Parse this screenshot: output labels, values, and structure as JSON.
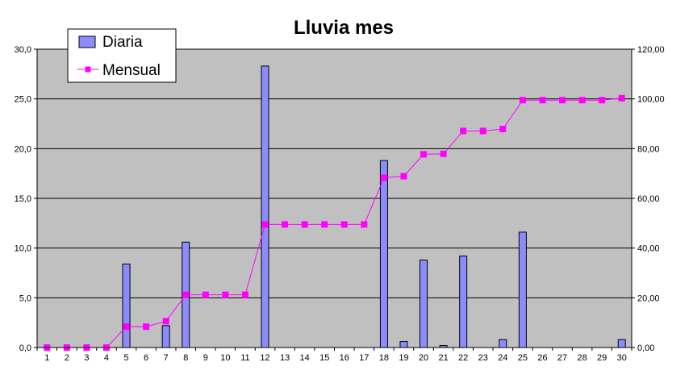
{
  "chart_data": {
    "type": "bar",
    "title": "Lluvia mes",
    "xlabel": "",
    "ylabel": "",
    "categories": [
      "1",
      "2",
      "3",
      "4",
      "5",
      "6",
      "7",
      "8",
      "9",
      "10",
      "11",
      "12",
      "13",
      "14",
      "15",
      "16",
      "17",
      "18",
      "19",
      "20",
      "21",
      "22",
      "23",
      "24",
      "25",
      "26",
      "27",
      "28",
      "29",
      "30"
    ],
    "series": [
      {
        "name": "Diaria",
        "type": "bar",
        "axis": "left",
        "color": "#8c8cff",
        "values": [
          0,
          0,
          0,
          0,
          8.4,
          0,
          2.2,
          10.6,
          0,
          0,
          0,
          28.3,
          0,
          0,
          0,
          0,
          0,
          18.8,
          0.6,
          8.8,
          0.2,
          9.2,
          0,
          0.8,
          11.6,
          0,
          0,
          0,
          0,
          0.8
        ]
      },
      {
        "name": "Mensual",
        "type": "line",
        "axis": "right",
        "color": "#ff00ff",
        "values": [
          0,
          0,
          0,
          0,
          8.4,
          8.4,
          10.6,
          21.2,
          21.2,
          21.2,
          21.2,
          49.5,
          49.5,
          49.5,
          49.5,
          49.5,
          49.5,
          68.3,
          68.9,
          77.7,
          77.9,
          87.1,
          87.1,
          87.9,
          99.5,
          99.5,
          99.5,
          99.5,
          99.5,
          100.3
        ]
      }
    ],
    "ylim_left": [
      0,
      30
    ],
    "yticks_left": [
      "0,0",
      "5,0",
      "10,0",
      "15,0",
      "20,0",
      "25,0",
      "30,0"
    ],
    "ylim_right": [
      0,
      120
    ],
    "yticks_right": [
      "0,00",
      "20,00",
      "40,00",
      "60,00",
      "80,00",
      "100,00",
      "120,00"
    ],
    "grid": true,
    "legend_position": "top-left",
    "plot_background": "#c0c0c0"
  }
}
